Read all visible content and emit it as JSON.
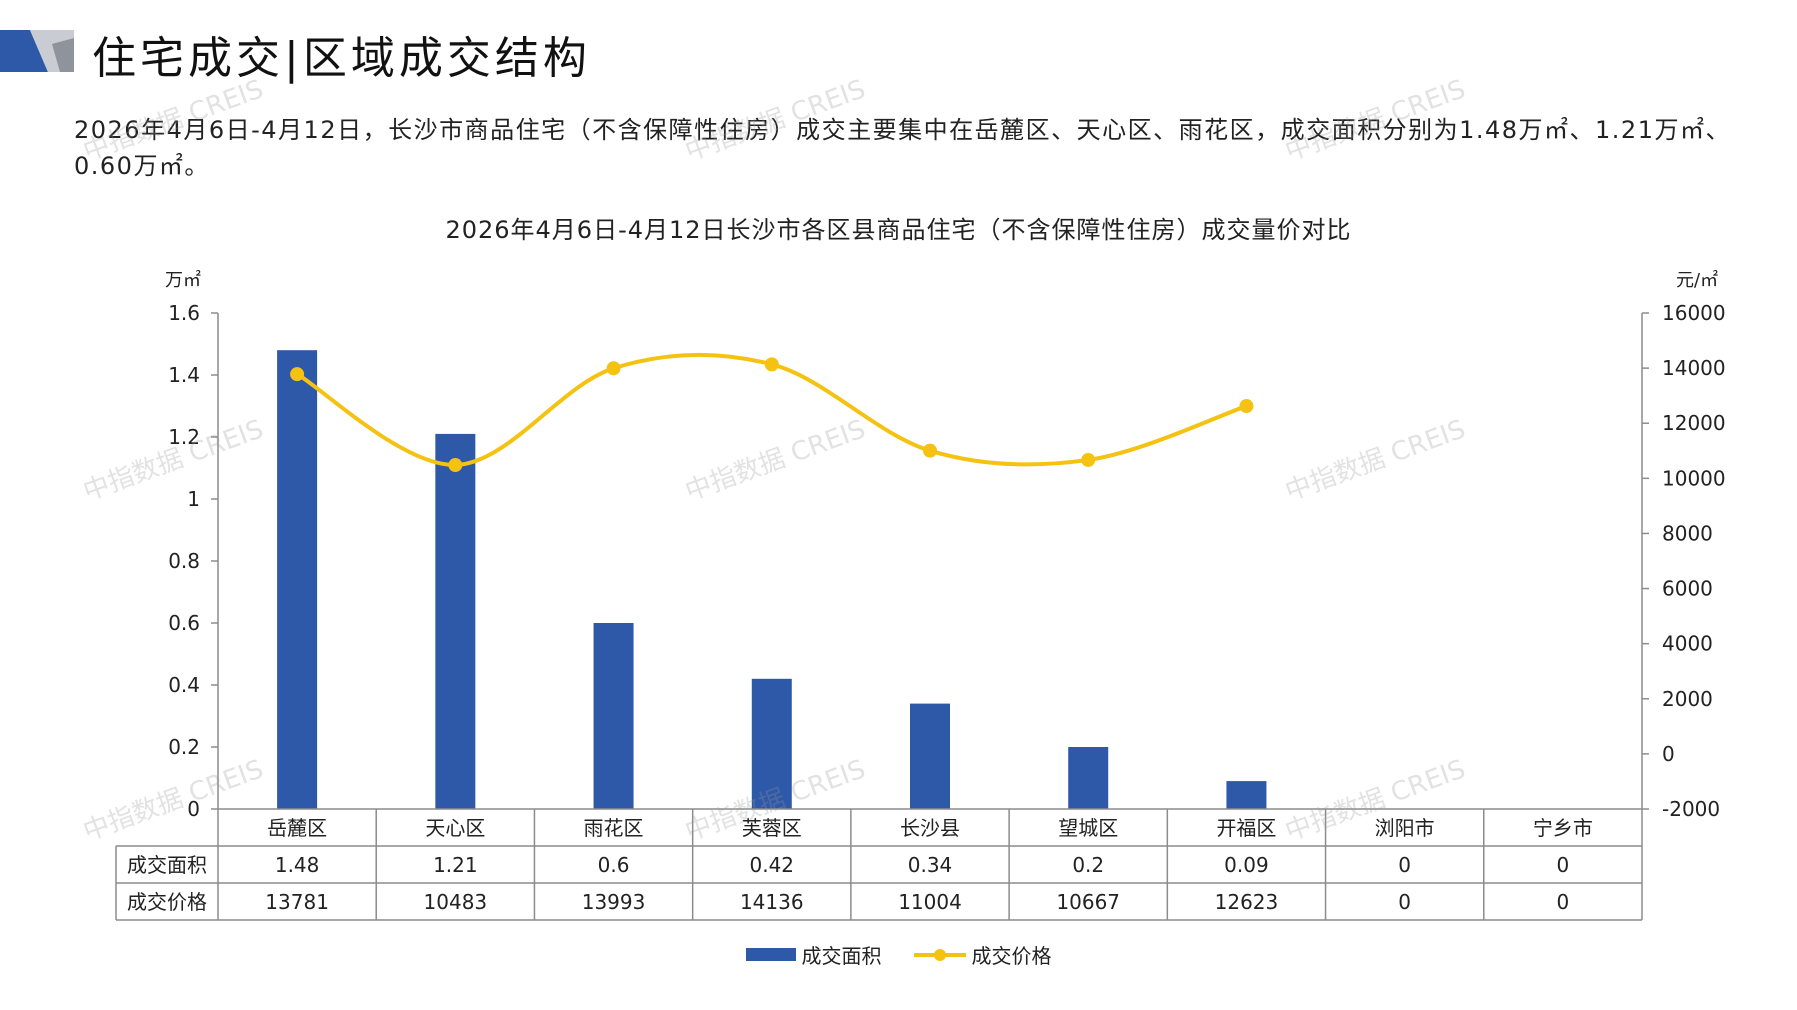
{
  "header": {
    "title": "住宅成交|区域成交结构"
  },
  "summary_text": "2026年4月6日-4月12日，长沙市商品住宅（不含保障性住房）成交主要集中在岳麓区、天心区、雨花区，成交面积分别为1.48万㎡、1.21万㎡、0.60万㎡。",
  "watermark_text": "中指数据 CREIS",
  "colors": {
    "bar": "#2e58a8",
    "line": "#f5c211",
    "logo_dark": "#2e58a8",
    "logo_light": "#c9ccd3"
  },
  "chart_data": {
    "type": "bar",
    "title": "2026年4月6日-4月12日长沙市各区县商品住宅（不含保障性住房）成交量价对比",
    "categories": [
      "岳麓区",
      "天心区",
      "雨花区",
      "芙蓉区",
      "长沙县",
      "望城区",
      "开福区",
      "浏阳市",
      "宁乡市"
    ],
    "y_left": {
      "unit": "万㎡",
      "range": [
        0,
        1.6
      ],
      "ticks": [
        "0",
        "0.2",
        "0.4",
        "0.6",
        "0.8",
        "1",
        "1.2",
        "1.4",
        "1.6"
      ]
    },
    "y_right": {
      "unit": "元/㎡",
      "range": [
        -2000,
        16000
      ],
      "ticks": [
        "-2000",
        "0",
        "2000",
        "4000",
        "6000",
        "8000",
        "10000",
        "12000",
        "14000",
        "16000"
      ]
    },
    "series": [
      {
        "name": "成交面积",
        "type": "bar",
        "axis": "left",
        "values": [
          1.48,
          1.21,
          0.6,
          0.42,
          0.34,
          0.2,
          0.09,
          0,
          0
        ],
        "labels": [
          "1.48",
          "1.21",
          "0.6",
          "0.42",
          "0.34",
          "0.2",
          "0.09",
          "0",
          "0"
        ]
      },
      {
        "name": "成交价格",
        "type": "line",
        "smooth": true,
        "axis": "right",
        "values": [
          13781,
          10483,
          13993,
          14136,
          11004,
          10667,
          12623,
          0,
          0
        ],
        "labels": [
          "13781",
          "10483",
          "13993",
          "14136",
          "11004",
          "10667",
          "12623",
          "0",
          "0"
        ],
        "plotted_count": 7
      }
    ],
    "legend": "bottom-center",
    "grid": false,
    "data_table": true
  }
}
